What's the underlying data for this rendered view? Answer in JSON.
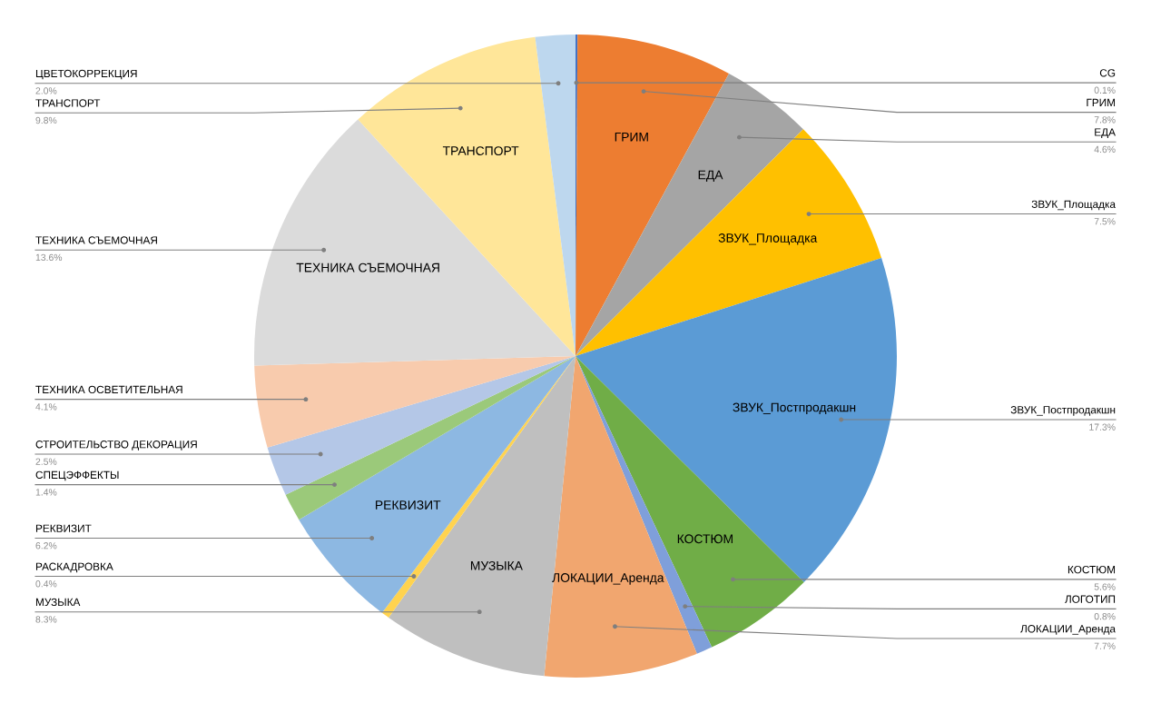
{
  "chart_data": {
    "type": "pie",
    "categories": [
      "CG",
      "ГРИМ",
      "ЕДА",
      "ЗВУК_Площадка",
      "ЗВУК_Постпродакшн",
      "КОСТЮМ",
      "ЛОГОТИП",
      "ЛОКАЦИИ_Аренда",
      "МУЗЫКА",
      "РАСКАДРОВКА",
      "РЕКВИЗИТ",
      "СПЕЦЭФФЕКТЫ",
      "СТРОИТЕЛЬСТВО ДЕКОРАЦИЯ",
      "ТЕХНИКА ОСВЕТИТЕЛЬНАЯ",
      "ТЕХНИКА СЪЕМОЧНАЯ",
      "ТРАНСПОРТ",
      "ЦВЕТОКОРРЕКЦИЯ"
    ],
    "values": [
      0.1,
      7.8,
      4.6,
      7.5,
      17.3,
      5.6,
      0.8,
      7.7,
      8.3,
      0.4,
      6.2,
      1.4,
      2.5,
      4.1,
      13.6,
      9.8,
      2.0
    ],
    "value_labels": [
      "0.1%",
      "7.8%",
      "4.6%",
      "7.5%",
      "17.3%",
      "5.6%",
      "0.8%",
      "7.7%",
      "8.3%",
      "0.4%",
      "6.2%",
      "1.4%",
      "2.5%",
      "4.1%",
      "13.6%",
      "9.8%",
      "2.0%"
    ],
    "colors": [
      "#4472c4",
      "#ed7d31",
      "#a5a5a5",
      "#ffc000",
      "#5b9bd5",
      "#70ad47",
      "#7f9fda",
      "#f1a66f",
      "#bfbfbf",
      "#ffd34f",
      "#8db8e2",
      "#9bc97a",
      "#b4c7e7",
      "#f8cbad",
      "#dbdbdb",
      "#ffe699",
      "#bdd7ee"
    ]
  }
}
